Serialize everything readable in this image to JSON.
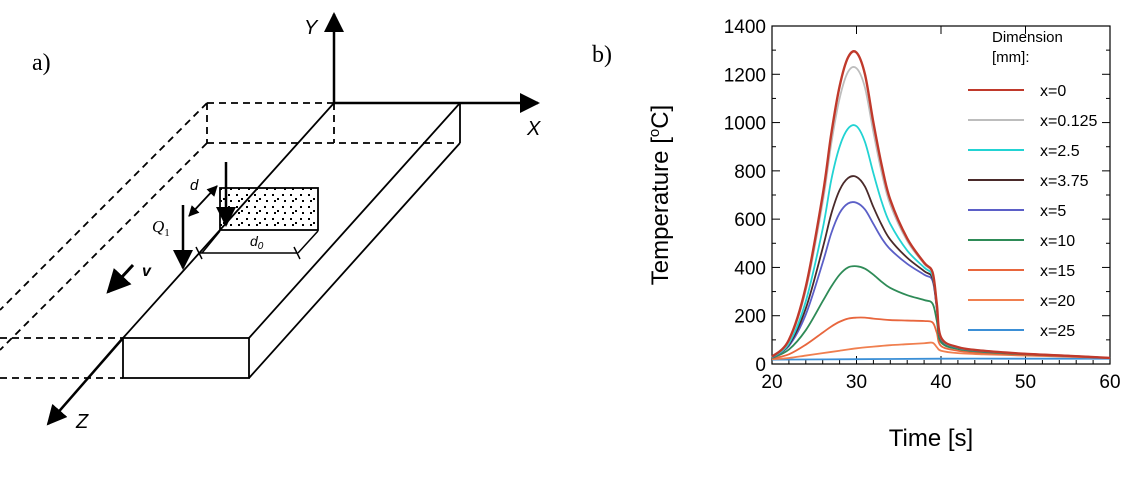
{
  "panel_a": {
    "label": "a)",
    "axis_y": "Y",
    "axis_x": "X",
    "axis_z": "Z",
    "velocity": "v",
    "heat_q": "Q",
    "heat_q_sub": "1",
    "dim_d": "d",
    "dim_d0": "d",
    "dim_d0_sub": "0"
  },
  "panel_b": {
    "label": "b)",
    "legend_title_line1": "Dimension",
    "legend_title_line2": "[mm]:"
  },
  "chart_data": {
    "type": "line",
    "xlabel": "Time [s]",
    "ylabel_prefix": "Temperature [",
    "ylabel_sup": "o",
    "ylabel_suffix": "C]",
    "xlim": [
      20,
      60
    ],
    "ylim": [
      0,
      1400
    ],
    "xticks": [
      "20",
      "30",
      "40",
      "50",
      "60"
    ],
    "yticks": [
      "0",
      "200",
      "400",
      "600",
      "800",
      "1000",
      "1200",
      "1400"
    ],
    "legend_position": "top-right",
    "series": [
      {
        "name": "x=0",
        "color": "#c0392b",
        "x": [
          20,
          22,
          24,
          26,
          27,
          28,
          29,
          30,
          31,
          32,
          33,
          34,
          36,
          38,
          39,
          39.5,
          40,
          42,
          45,
          50,
          55,
          60
        ],
        "y": [
          30,
          100,
          320,
          700,
          950,
          1150,
          1270,
          1290,
          1200,
          1000,
          820,
          680,
          520,
          420,
          380,
          250,
          110,
          70,
          55,
          42,
          34,
          25
        ]
      },
      {
        "name": "x=0.125",
        "color": "#bdbdbd",
        "x": [
          20,
          22,
          24,
          26,
          27,
          28,
          29,
          30,
          31,
          32,
          33,
          34,
          36,
          38,
          39,
          39.5,
          40,
          42,
          45,
          50,
          55,
          60
        ],
        "y": [
          30,
          95,
          305,
          670,
          910,
          1100,
          1210,
          1225,
          1145,
          960,
          790,
          660,
          510,
          415,
          375,
          245,
          108,
          70,
          55,
          42,
          34,
          25
        ]
      },
      {
        "name": "x=2.5",
        "color": "#22d3d3",
        "x": [
          20,
          22,
          24,
          26,
          27,
          28,
          29,
          30,
          31,
          32,
          33,
          34,
          36,
          38,
          39,
          39.5,
          40,
          42,
          45,
          50,
          55,
          60
        ],
        "y": [
          28,
          85,
          260,
          560,
          760,
          900,
          975,
          985,
          920,
          790,
          670,
          580,
          470,
          400,
          365,
          240,
          105,
          68,
          54,
          42,
          34,
          25
        ]
      },
      {
        "name": "x=3.75",
        "color": "#4a2a2a",
        "x": [
          20,
          22,
          24,
          26,
          27,
          28,
          29,
          30,
          31,
          32,
          33,
          34,
          36,
          38,
          39,
          39.5,
          40,
          42,
          45,
          50,
          55,
          60
        ],
        "y": [
          28,
          80,
          230,
          480,
          620,
          720,
          770,
          775,
          735,
          650,
          575,
          515,
          440,
          385,
          355,
          235,
          103,
          68,
          54,
          42,
          34,
          25
        ]
      },
      {
        "name": "x=5",
        "color": "#5b5fc7",
        "x": [
          20,
          22,
          24,
          26,
          27,
          28,
          29,
          30,
          31,
          32,
          33,
          34,
          36,
          38,
          39,
          39.5,
          40,
          42,
          45,
          50,
          55,
          60
        ],
        "y": [
          27,
          75,
          205,
          420,
          540,
          625,
          665,
          668,
          640,
          580,
          520,
          475,
          415,
          370,
          345,
          230,
          102,
          67,
          53,
          42,
          34,
          25
        ]
      },
      {
        "name": "x=10",
        "color": "#2e8b57",
        "x": [
          20,
          22,
          24,
          26,
          27,
          28,
          29,
          30,
          31,
          32,
          33,
          34,
          36,
          38,
          39,
          39.5,
          40,
          42,
          45,
          50,
          55,
          60
        ],
        "y": [
          25,
          60,
          140,
          260,
          320,
          370,
          400,
          405,
          395,
          370,
          340,
          315,
          285,
          265,
          250,
          180,
          90,
          62,
          50,
          40,
          33,
          25
        ]
      },
      {
        "name": "x=15",
        "color": "#e8663d",
        "x": [
          20,
          22,
          24,
          26,
          27,
          28,
          29,
          30,
          31,
          32,
          33,
          34,
          36,
          38,
          39,
          39.5,
          40,
          42,
          45,
          50,
          55,
          60
        ],
        "y": [
          22,
          40,
          80,
          130,
          155,
          175,
          188,
          192,
          192,
          188,
          185,
          182,
          180,
          178,
          172,
          130,
          75,
          55,
          45,
          38,
          32,
          25
        ]
      },
      {
        "name": "x=20",
        "color": "#f07f4f",
        "x": [
          20,
          22,
          24,
          26,
          28,
          30,
          32,
          34,
          36,
          38,
          39,
          39.5,
          40,
          42,
          45,
          50,
          55,
          60
        ],
        "y": [
          20,
          25,
          35,
          45,
          55,
          65,
          72,
          78,
          82,
          86,
          88,
          70,
          55,
          45,
          40,
          35,
          30,
          25
        ]
      },
      {
        "name": "x=25",
        "color": "#3b8fd6",
        "x": [
          20,
          30,
          40,
          50,
          60
        ],
        "y": [
          18,
          20,
          22,
          22,
          22
        ]
      }
    ]
  }
}
